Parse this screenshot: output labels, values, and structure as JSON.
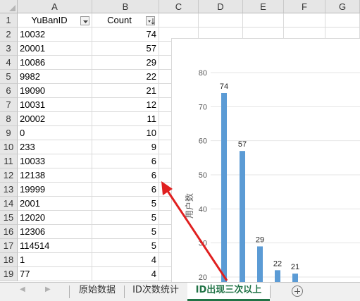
{
  "columns": [
    "A",
    "B",
    "C",
    "D",
    "E",
    "F",
    "G"
  ],
  "header_row": {
    "A": "YuBanID",
    "B": "Count"
  },
  "rows": [
    {
      "num": "1"
    },
    {
      "num": "2",
      "a": "10032",
      "b": "74"
    },
    {
      "num": "3",
      "a": "20001",
      "b": "57"
    },
    {
      "num": "4",
      "a": "10086",
      "b": "29"
    },
    {
      "num": "5",
      "a": "9982",
      "b": "22"
    },
    {
      "num": "6",
      "a": "19090",
      "b": "21"
    },
    {
      "num": "7",
      "a": "10031",
      "b": "12"
    },
    {
      "num": "8",
      "a": "20002",
      "b": "11"
    },
    {
      "num": "9",
      "a": "0",
      "b": "10"
    },
    {
      "num": "10",
      "a": "233",
      "b": "9"
    },
    {
      "num": "11",
      "a": "10033",
      "b": "6"
    },
    {
      "num": "12",
      "a": "12138",
      "b": "6"
    },
    {
      "num": "13",
      "a": "19999",
      "b": "6"
    },
    {
      "num": "14",
      "a": "2001",
      "b": "5"
    },
    {
      "num": "15",
      "a": "12020",
      "b": "5"
    },
    {
      "num": "16",
      "a": "12306",
      "b": "5"
    },
    {
      "num": "17",
      "a": "114514",
      "b": "5"
    },
    {
      "num": "18",
      "a": "1",
      "b": "4"
    },
    {
      "num": "19",
      "a": "77",
      "b": "4"
    }
  ],
  "chart_data": {
    "type": "bar",
    "ylabel": "用户数",
    "y_ticks": [
      "80",
      "70",
      "60",
      "50",
      "40",
      "30",
      "20"
    ],
    "ylim_visible": [
      20,
      80
    ],
    "values": [
      74,
      57,
      29,
      22,
      21
    ],
    "labels": [
      "74",
      "57",
      "29",
      "22",
      "21"
    ],
    "bar_color": "#5b9bd5"
  },
  "tabs": [
    "原始数据",
    "ID次数统计",
    "ID出现三次以上"
  ],
  "active_tab": 2,
  "colors": {
    "accent": "#217346",
    "arrow": "#e02020"
  }
}
